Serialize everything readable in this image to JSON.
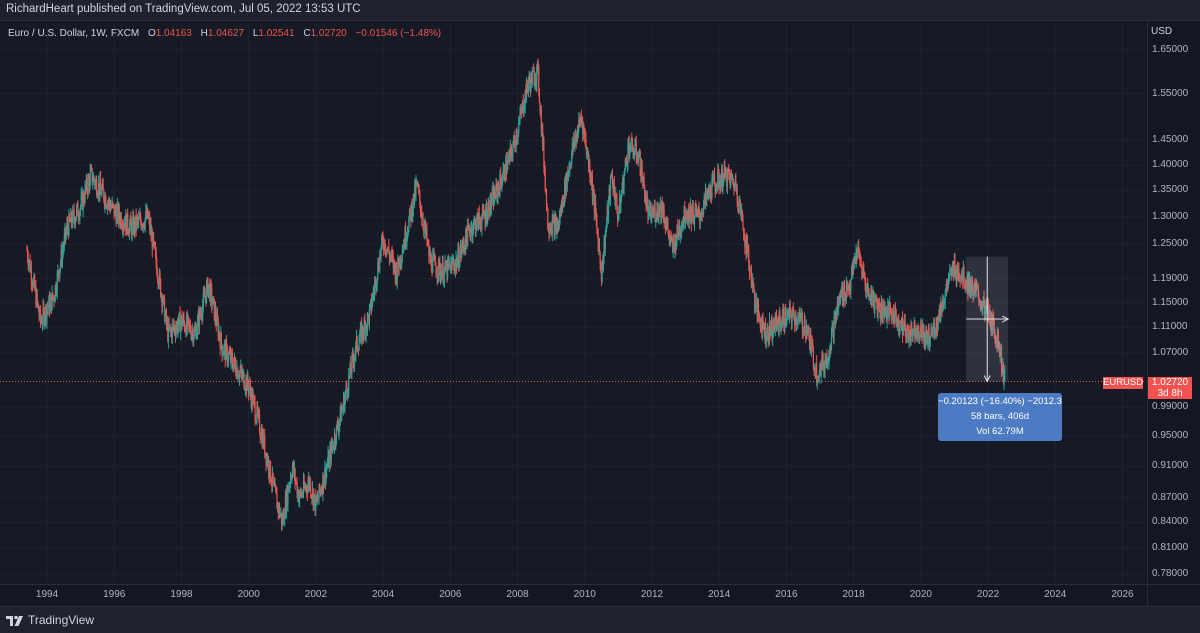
{
  "header": {
    "publisher_line": "RichardHeart published on TradingView.com, Jul 05, 2022 13:53 UTC"
  },
  "legend": {
    "symbol": "Euro / U.S. Dollar, 1W, FXCM",
    "open_label": "O",
    "open": "1.04163",
    "high_label": "H",
    "high": "1.04627",
    "low_label": "L",
    "low": "1.02541",
    "close_label": "C",
    "close": "1.02720",
    "change": "−0.01546 (−1.48%)"
  },
  "price_axis": {
    "currency": "USD",
    "labels": [
      "1.65000",
      "1.55000",
      "1.45000",
      "1.40000",
      "1.35000",
      "1.30000",
      "1.25000",
      "1.19000",
      "1.15000",
      "1.11000",
      "1.07000",
      "0.99000",
      "0.95000",
      "0.91000",
      "0.87000",
      "0.84000",
      "0.81000",
      "0.78000"
    ]
  },
  "time_axis": {
    "labels": [
      "1994",
      "1996",
      "1998",
      "2000",
      "2002",
      "2004",
      "2006",
      "2008",
      "2010",
      "2012",
      "2014",
      "2016",
      "2018",
      "2020",
      "2022",
      "2024",
      "2026"
    ]
  },
  "last_price": {
    "symbol": "EURUSD",
    "value": "1.02720",
    "countdown": "3d 8h"
  },
  "measure": {
    "line1": "−0.20123 (−16.40%) −2012.3",
    "line2": "58 bars, 406d",
    "line3": "Vol 62.79M"
  },
  "footer": {
    "brand": "TradingView"
  },
  "colors": {
    "up": "#26a69a",
    "down": "#ef5350",
    "background": "#161a25",
    "measure": "#4d7bc3"
  },
  "chart_data": {
    "type": "candlestick",
    "interval": "1W",
    "y_scale": "log",
    "ylim": [
      0.77,
      1.72
    ],
    "x_range": [
      1992.6,
      2026.7
    ],
    "series": [
      {
        "name": "EURUSD",
        "x": [
          1993.4,
          1993.8,
          1994.2,
          1994.6,
          1995.0,
          1995.3,
          1995.6,
          1996.0,
          1996.5,
          1997.0,
          1997.3,
          1997.6,
          1998.0,
          1998.4,
          1998.8,
          1999.2,
          1999.6,
          2000.0,
          2000.4,
          2000.8,
          2001.0,
          2001.3,
          2001.5,
          2001.8,
          2002.0,
          2002.4,
          2002.8,
          2003.2,
          2003.6,
          2004.0,
          2004.4,
          2004.8,
          2005.0,
          2005.4,
          2005.8,
          2006.2,
          2006.6,
          2007.0,
          2007.4,
          2007.8,
          2008.0,
          2008.3,
          2008.6,
          2008.9,
          2009.2,
          2009.6,
          2009.9,
          2010.2,
          2010.5,
          2010.8,
          2011.0,
          2011.3,
          2011.6,
          2011.9,
          2012.3,
          2012.6,
          2013.0,
          2013.4,
          2013.8,
          2014.2,
          2014.5,
          2014.8,
          2015.1,
          2015.4,
          2015.8,
          2016.2,
          2016.6,
          2016.9,
          2017.2,
          2017.6,
          2017.9,
          2018.1,
          2018.4,
          2018.8,
          2019.2,
          2019.6,
          2019.9,
          2020.2,
          2020.5,
          2020.8,
          2021.0,
          2021.3,
          2021.7,
          2022.0,
          2022.3,
          2022.5
        ],
        "y": [
          1.24,
          1.12,
          1.16,
          1.28,
          1.32,
          1.38,
          1.35,
          1.31,
          1.28,
          1.3,
          1.2,
          1.1,
          1.12,
          1.1,
          1.18,
          1.08,
          1.05,
          1.02,
          0.95,
          0.87,
          0.84,
          0.91,
          0.87,
          0.89,
          0.86,
          0.92,
          0.99,
          1.08,
          1.13,
          1.26,
          1.2,
          1.3,
          1.36,
          1.22,
          1.2,
          1.22,
          1.28,
          1.3,
          1.35,
          1.42,
          1.47,
          1.57,
          1.6,
          1.29,
          1.28,
          1.42,
          1.5,
          1.37,
          1.2,
          1.38,
          1.3,
          1.44,
          1.42,
          1.3,
          1.32,
          1.24,
          1.31,
          1.3,
          1.36,
          1.38,
          1.36,
          1.25,
          1.14,
          1.1,
          1.12,
          1.13,
          1.11,
          1.04,
          1.06,
          1.16,
          1.18,
          1.24,
          1.17,
          1.14,
          1.13,
          1.1,
          1.11,
          1.09,
          1.12,
          1.18,
          1.21,
          1.19,
          1.16,
          1.13,
          1.09,
          1.0272
        ]
      }
    ],
    "measurement": {
      "from_price": 1.228,
      "to_price": 1.0272,
      "change": "−0.20123 (−16.40%)",
      "bars": 58,
      "days": 406
    },
    "grid": true
  }
}
